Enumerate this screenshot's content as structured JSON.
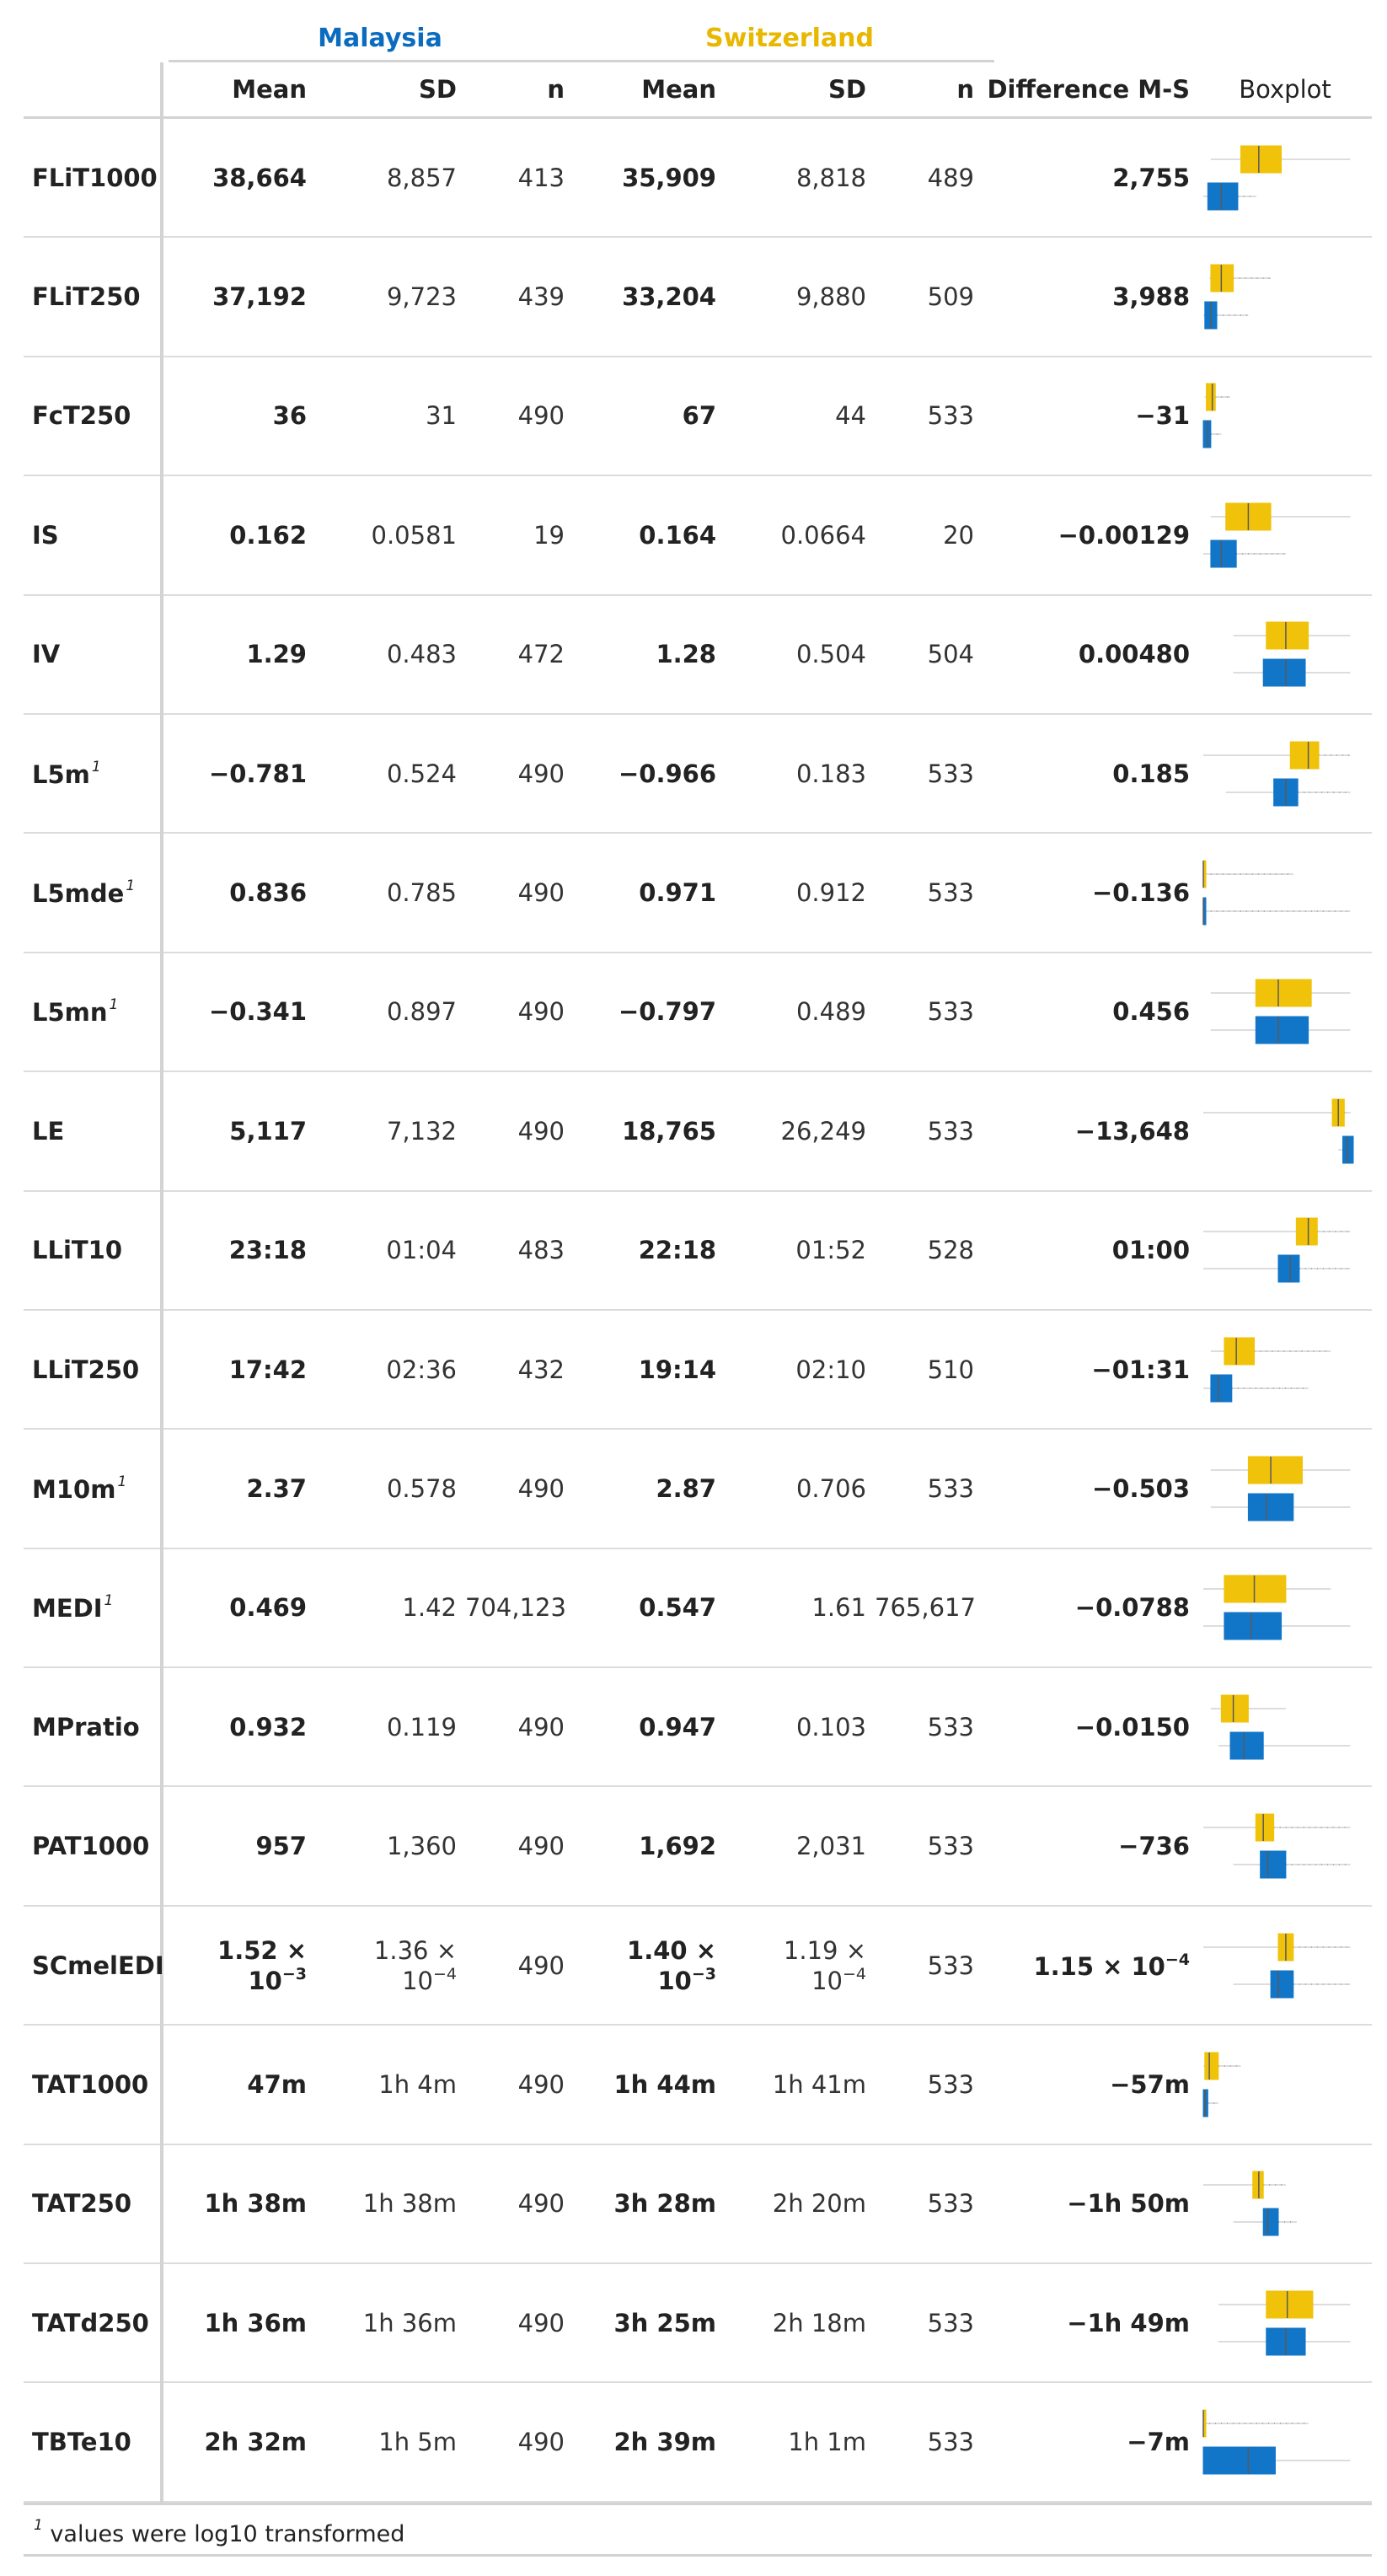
{
  "spanners": {
    "malaysia": {
      "label": "Malaysia",
      "color": "#0b6cbf"
    },
    "switzerland": {
      "label": "Switzerland",
      "color": "#e8b800"
    }
  },
  "columns": [
    "",
    "Mean",
    "SD",
    "n",
    "Mean",
    "SD",
    "n",
    "Difference M-S",
    "Boxplot"
  ],
  "colors": {
    "malaysia_box": "#1175c8",
    "switzerland_box": "#f0c20a",
    "outline": "#5a5a5a",
    "whisker": "#bbbbbb"
  },
  "rows": [
    {
      "name": "FLiT1000",
      "sup": "",
      "m_mean": "38,664",
      "m_sd": "8,857",
      "m_n": "413",
      "s_mean": "35,909",
      "s_sd": "8,818",
      "s_n": "489",
      "diff": "2,755",
      "box_s": {
        "whisker_lo": 0.05,
        "q1": 0.25,
        "median": 0.37,
        "q3": 0.52,
        "whisker_hi": 0.98,
        "outlier_dots": false
      },
      "box_m": {
        "whisker_lo": 0.0,
        "q1": 0.03,
        "median": 0.12,
        "q3": 0.23,
        "whisker_hi": 0.35,
        "outlier_dots": true
      }
    },
    {
      "name": "FLiT250",
      "sup": "",
      "m_mean": "37,192",
      "m_sd": "9,723",
      "m_n": "439",
      "s_mean": "33,204",
      "s_sd": "9,880",
      "s_n": "509",
      "diff": "3,988",
      "box_s": {
        "whisker_lo": 0.04,
        "q1": 0.05,
        "median": 0.12,
        "q3": 0.2,
        "whisker_hi": 0.45,
        "outlier_dots": true
      },
      "box_m": {
        "whisker_lo": 0.0,
        "q1": 0.01,
        "median": 0.05,
        "q3": 0.09,
        "whisker_hi": 0.3,
        "outlier_dots": true
      }
    },
    {
      "name": "FcT250",
      "sup": "",
      "m_mean": "36",
      "m_sd": "31",
      "m_n": "490",
      "s_mean": "67",
      "s_sd": "44",
      "s_n": "533",
      "diff": "−31",
      "box_s": {
        "whisker_lo": 0.01,
        "q1": 0.02,
        "median": 0.06,
        "q3": 0.08,
        "whisker_hi": 0.18,
        "outlier_dots": true
      },
      "box_m": {
        "whisker_lo": 0.0,
        "q1": 0.0,
        "median": 0.03,
        "q3": 0.05,
        "whisker_hi": 0.12,
        "outlier_dots": true
      }
    },
    {
      "name": "IS",
      "sup": "",
      "m_mean": "0.162",
      "m_sd": "0.0581",
      "m_n": "19",
      "s_mean": "0.164",
      "s_sd": "0.0664",
      "s_n": "20",
      "diff": "−0.00129",
      "box_s": {
        "whisker_lo": 0.05,
        "q1": 0.15,
        "median": 0.3,
        "q3": 0.45,
        "whisker_hi": 0.98,
        "outlier_dots": false
      },
      "box_m": {
        "whisker_lo": 0.0,
        "q1": 0.05,
        "median": 0.12,
        "q3": 0.22,
        "whisker_hi": 0.55,
        "outlier_dots": true
      }
    },
    {
      "name": "IV",
      "sup": "",
      "m_mean": "1.29",
      "m_sd": "0.483",
      "m_n": "472",
      "s_mean": "1.28",
      "s_sd": "0.504",
      "s_n": "504",
      "diff": "0.00480",
      "box_s": {
        "whisker_lo": 0.2,
        "q1": 0.42,
        "median": 0.55,
        "q3": 0.7,
        "whisker_hi": 0.98,
        "outlier_dots": false
      },
      "box_m": {
        "whisker_lo": 0.2,
        "q1": 0.4,
        "median": 0.55,
        "q3": 0.68,
        "whisker_hi": 0.98,
        "outlier_dots": false
      }
    },
    {
      "name": "L5m",
      "sup": "1",
      "m_mean": "−0.781",
      "m_sd": "0.524",
      "m_n": "490",
      "s_mean": "−0.966",
      "s_sd": "0.183",
      "s_n": "533",
      "diff": "0.185",
      "box_s": {
        "whisker_lo": 0.0,
        "q1": 0.58,
        "median": 0.7,
        "q3": 0.77,
        "whisker_hi": 0.98,
        "outlier_dots": true
      },
      "box_m": {
        "whisker_lo": 0.15,
        "q1": 0.47,
        "median": 0.55,
        "q3": 0.63,
        "whisker_hi": 0.98,
        "outlier_dots": true
      }
    },
    {
      "name": "L5mde",
      "sup": "1",
      "m_mean": "0.836",
      "m_sd": "0.785",
      "m_n": "490",
      "s_mean": "0.971",
      "s_sd": "0.912",
      "s_n": "533",
      "diff": "−0.136",
      "box_s": {
        "whisker_lo": 0.0,
        "q1": 0.0,
        "median": 0.0,
        "q3": 0.01,
        "whisker_hi": 0.6,
        "outlier_dots": true
      },
      "box_m": {
        "whisker_lo": 0.0,
        "q1": 0.0,
        "median": 0.0,
        "q3": 0.01,
        "whisker_hi": 0.98,
        "outlier_dots": true
      }
    },
    {
      "name": "L5mn",
      "sup": "1",
      "m_mean": "−0.341",
      "m_sd": "0.897",
      "m_n": "490",
      "s_mean": "−0.797",
      "s_sd": "0.489",
      "s_n": "533",
      "diff": "0.456",
      "box_s": {
        "whisker_lo": 0.05,
        "q1": 0.35,
        "median": 0.5,
        "q3": 0.72,
        "whisker_hi": 0.98,
        "outlier_dots": false
      },
      "box_m": {
        "whisker_lo": 0.05,
        "q1": 0.35,
        "median": 0.5,
        "q3": 0.7,
        "whisker_hi": 0.98,
        "outlier_dots": false
      }
    },
    {
      "name": "LE",
      "sup": "",
      "m_mean": "5,117",
      "m_sd": "7,132",
      "m_n": "490",
      "s_mean": "18,765",
      "s_sd": "26,249",
      "s_n": "533",
      "diff": "−13,648",
      "box_s": {
        "whisker_lo": 0.0,
        "q1": 0.86,
        "median": 0.9,
        "q3": 0.94,
        "whisker_hi": 0.98,
        "outlier_dots": true
      },
      "box_m": {
        "whisker_lo": 0.9,
        "q1": 0.93,
        "median": 0.96,
        "q3": 1.0,
        "whisker_hi": 1.0,
        "outlier_dots": false
      }
    },
    {
      "name": "LLiT10",
      "sup": "",
      "m_mean": "23:18",
      "m_sd": "01:04",
      "m_n": "483",
      "s_mean": "22:18",
      "s_sd": "01:52",
      "s_n": "528",
      "diff": "01:00",
      "box_s": {
        "whisker_lo": 0.0,
        "q1": 0.62,
        "median": 0.7,
        "q3": 0.76,
        "whisker_hi": 0.98,
        "outlier_dots": true
      },
      "box_m": {
        "whisker_lo": 0.0,
        "q1": 0.5,
        "median": 0.58,
        "q3": 0.64,
        "whisker_hi": 0.98,
        "outlier_dots": true
      }
    },
    {
      "name": "LLiT250",
      "sup": "",
      "m_mean": "17:42",
      "m_sd": "02:36",
      "m_n": "432",
      "s_mean": "19:14",
      "s_sd": "02:10",
      "s_n": "510",
      "diff": "−01:31",
      "box_s": {
        "whisker_lo": 0.05,
        "q1": 0.14,
        "median": 0.22,
        "q3": 0.34,
        "whisker_hi": 0.85,
        "outlier_dots": true
      },
      "box_m": {
        "whisker_lo": 0.0,
        "q1": 0.05,
        "median": 0.1,
        "q3": 0.19,
        "whisker_hi": 0.7,
        "outlier_dots": true
      }
    },
    {
      "name": "M10m",
      "sup": "1",
      "m_mean": "2.37",
      "m_sd": "0.578",
      "m_n": "490",
      "s_mean": "2.87",
      "s_sd": "0.706",
      "s_n": "533",
      "diff": "−0.503",
      "box_s": {
        "whisker_lo": 0.05,
        "q1": 0.3,
        "median": 0.45,
        "q3": 0.66,
        "whisker_hi": 0.98,
        "outlier_dots": false
      },
      "box_m": {
        "whisker_lo": 0.05,
        "q1": 0.3,
        "median": 0.42,
        "q3": 0.6,
        "whisker_hi": 0.98,
        "outlier_dots": false
      }
    },
    {
      "name": "MEDI",
      "sup": "1",
      "m_mean": "0.469",
      "m_sd": "1.42",
      "m_n": "704,123",
      "s_mean": "0.547",
      "s_sd": "1.61",
      "s_n": "765,617",
      "diff": "−0.0788",
      "box_s": {
        "whisker_lo": 0.0,
        "q1": 0.14,
        "median": 0.34,
        "q3": 0.55,
        "whisker_hi": 0.85,
        "outlier_dots": false
      },
      "box_m": {
        "whisker_lo": 0.0,
        "q1": 0.14,
        "median": 0.32,
        "q3": 0.52,
        "whisker_hi": 0.98,
        "outlier_dots": false
      }
    },
    {
      "name": "MPratio",
      "sup": "",
      "m_mean": "0.932",
      "m_sd": "0.119",
      "m_n": "490",
      "s_mean": "0.947",
      "s_sd": "0.103",
      "s_n": "533",
      "diff": "−0.0150",
      "box_s": {
        "whisker_lo": 0.05,
        "q1": 0.12,
        "median": 0.2,
        "q3": 0.3,
        "whisker_hi": 0.55,
        "outlier_dots": false
      },
      "box_m": {
        "whisker_lo": 0.1,
        "q1": 0.18,
        "median": 0.27,
        "q3": 0.4,
        "whisker_hi": 0.98,
        "outlier_dots": false
      }
    },
    {
      "name": "PAT1000",
      "sup": "",
      "m_mean": "957",
      "m_sd": "1,360",
      "m_n": "490",
      "s_mean": "1,692",
      "s_sd": "2,031",
      "s_n": "533",
      "diff": "−736",
      "box_s": {
        "whisker_lo": 0.0,
        "q1": 0.35,
        "median": 0.4,
        "q3": 0.47,
        "whisker_hi": 0.98,
        "outlier_dots": true
      },
      "box_m": {
        "whisker_lo": 0.2,
        "q1": 0.38,
        "median": 0.43,
        "q3": 0.55,
        "whisker_hi": 0.98,
        "outlier_dots": true
      }
    },
    {
      "name": "SCmelEDI",
      "sup": "",
      "m_mean_base": "1.52 × 10",
      "m_mean_exp": "−3",
      "m_sd_base": "1.36 × 10",
      "m_sd_exp": "−4",
      "m_n": "490",
      "s_mean_base": "1.40 × 10",
      "s_mean_exp": "−3",
      "s_sd_base": "1.19 × 10",
      "s_sd_exp": "−4",
      "s_n": "533",
      "diff_base": "1.15 × 10",
      "diff_exp": "−4",
      "box_s": {
        "whisker_lo": 0.0,
        "q1": 0.5,
        "median": 0.55,
        "q3": 0.6,
        "whisker_hi": 0.98,
        "outlier_dots": true
      },
      "box_m": {
        "whisker_lo": 0.2,
        "q1": 0.45,
        "median": 0.5,
        "q3": 0.6,
        "whisker_hi": 0.98,
        "outlier_dots": true
      }
    },
    {
      "name": "TAT1000",
      "sup": "",
      "m_mean": "47m",
      "m_sd": "1h 4m",
      "m_n": "490",
      "s_mean": "1h 44m",
      "s_sd": "1h 41m",
      "s_n": "533",
      "diff": "−57m",
      "box_s": {
        "whisker_lo": 0.0,
        "q1": 0.01,
        "median": 0.04,
        "q3": 0.1,
        "whisker_hi": 0.25,
        "outlier_dots": true
      },
      "box_m": {
        "whisker_lo": 0.0,
        "q1": 0.0,
        "median": 0.01,
        "q3": 0.03,
        "whisker_hi": 0.1,
        "outlier_dots": true
      }
    },
    {
      "name": "TAT250",
      "sup": "",
      "m_mean": "1h 38m",
      "m_sd": "1h 38m",
      "m_n": "490",
      "s_mean": "3h 28m",
      "s_sd": "2h 20m",
      "s_n": "533",
      "diff": "−1h 50m",
      "box_s": {
        "whisker_lo": 0.0,
        "q1": 0.33,
        "median": 0.37,
        "q3": 0.4,
        "whisker_hi": 0.55,
        "outlier_dots": true
      },
      "box_m": {
        "whisker_lo": 0.2,
        "q1": 0.4,
        "median": 0.43,
        "q3": 0.5,
        "whisker_hi": 0.62,
        "outlier_dots": true
      }
    },
    {
      "name": "TATd250",
      "sup": "",
      "m_mean": "1h 36m",
      "m_sd": "1h 36m",
      "m_n": "490",
      "s_mean": "3h 25m",
      "s_sd": "2h 18m",
      "s_n": "533",
      "diff": "−1h 49m",
      "box_s": {
        "whisker_lo": 0.1,
        "q1": 0.42,
        "median": 0.56,
        "q3": 0.73,
        "whisker_hi": 0.98,
        "outlier_dots": false
      },
      "box_m": {
        "whisker_lo": 0.1,
        "q1": 0.42,
        "median": 0.55,
        "q3": 0.68,
        "whisker_hi": 0.98,
        "outlier_dots": false
      }
    },
    {
      "name": "TBTe10",
      "sup": "",
      "m_mean": "2h 32m",
      "m_sd": "1h 5m",
      "m_n": "490",
      "s_mean": "2h 39m",
      "s_sd": "1h 1m",
      "s_n": "533",
      "diff": "−7m",
      "box_s": {
        "whisker_lo": 0.0,
        "q1": 0.0,
        "median": 0.0,
        "q3": 0.0,
        "whisker_hi": 0.7,
        "outlier_dots": true
      },
      "box_m": {
        "whisker_lo": 0.0,
        "q1": 0.0,
        "median": 0.3,
        "q3": 0.48,
        "whisker_hi": 0.98,
        "outlier_dots": false
      }
    }
  ],
  "footnote": {
    "mark": "1",
    "text": "values were log10 transformed"
  }
}
